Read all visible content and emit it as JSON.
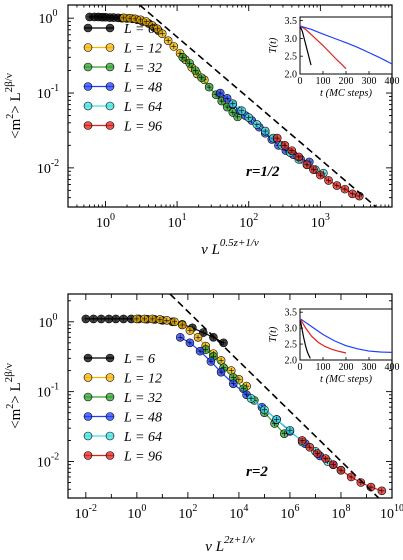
{
  "chart_data": [
    {
      "type": "scatter",
      "panel_label": "r=1/2",
      "x_scale": "log",
      "y_scale": "log",
      "xlim": [
        0.3,
        10000
      ],
      "ylim": [
        0.003,
        1.5
      ],
      "xtick_exponents": [
        0,
        1,
        2,
        3
      ],
      "ytick_exponents": [
        -2,
        -1,
        0
      ],
      "xlabel_main": "v L",
      "xlabel_sup": "0.5z+1/ν",
      "ylabel_main": "<m",
      "ylabel_mid": "> L",
      "ylabel_sup2": "2",
      "ylabel_sup": "2β/ν",
      "legend": {
        "position": "left",
        "entries": [
          "L = 6",
          "L = 12",
          "L = 32",
          "L = 48",
          "L = 64",
          "L = 96"
        ]
      },
      "fit_line": {
        "style": "dashed",
        "points": [
          [
            3.0,
            1.5
          ],
          [
            6000,
            0.003
          ]
        ]
      },
      "series": [
        {
          "name": "L = 6",
          "color": "#000000",
          "marker": "plus-circle",
          "points": [
            [
              0.6,
              1.04
            ],
            [
              0.7,
              1.04
            ],
            [
              0.8,
              1.04
            ],
            [
              0.9,
              1.03
            ],
            [
              1.0,
              1.03
            ],
            [
              1.15,
              1.02
            ],
            [
              1.3,
              1.02
            ],
            [
              1.5,
              1.01
            ],
            [
              1.7,
              1.0
            ],
            [
              2.0,
              0.99
            ],
            [
              2.4,
              0.98
            ],
            [
              2.8,
              0.95
            ],
            [
              3.3,
              0.9
            ],
            [
              4.0,
              0.85
            ],
            [
              4.8,
              0.75
            ],
            [
              5.5,
              0.68
            ]
          ]
        },
        {
          "name": "L = 12",
          "color": "#f5b400",
          "marker": "plus-circle",
          "points": [
            [
              1.8,
              1.01
            ],
            [
              2.2,
              1.0
            ],
            [
              2.6,
              0.98
            ],
            [
              3.1,
              0.95
            ],
            [
              3.7,
              0.9
            ],
            [
              4.5,
              0.8
            ],
            [
              5.3,
              0.72
            ],
            [
              6.2,
              0.62
            ],
            [
              7.5,
              0.5
            ],
            [
              9,
              0.42
            ],
            [
              11,
              0.34
            ],
            [
              13,
              0.28
            ],
            [
              16,
              0.22
            ],
            [
              19,
              0.18
            ],
            [
              24,
              0.15
            ]
          ]
        },
        {
          "name": "L = 32",
          "color": "#2ca02c",
          "marker": "plus-circle",
          "points": [
            [
              12,
              0.3
            ],
            [
              15,
              0.25
            ],
            [
              18,
              0.2
            ],
            [
              22,
              0.16
            ],
            [
              28,
              0.12
            ],
            [
              35,
              0.095
            ],
            [
              42,
              0.078
            ],
            [
              50,
              0.065
            ],
            [
              60,
              0.055
            ],
            [
              70,
              0.048
            ]
          ]
        },
        {
          "name": "L = 48",
          "color": "#1f3fff",
          "marker": "plus-circle",
          "points": [
            [
              40,
              0.1
            ],
            [
              50,
              0.085
            ],
            [
              60,
              0.07
            ],
            [
              75,
              0.058
            ],
            [
              90,
              0.05
            ],
            [
              110,
              0.043
            ],
            [
              140,
              0.035
            ],
            [
              170,
              0.029
            ],
            [
              210,
              0.024
            ],
            [
              260,
              0.02
            ],
            [
              330,
              0.017
            ],
            [
              420,
              0.015
            ],
            [
              530,
              0.013
            ],
            [
              700,
              0.012
            ]
          ]
        },
        {
          "name": "L = 64",
          "color": "#40e0e0",
          "marker": "plus-circle",
          "points": [
            [
              60,
              0.072
            ],
            [
              80,
              0.058
            ],
            [
              100,
              0.047
            ],
            [
              130,
              0.038
            ],
            [
              170,
              0.031
            ],
            [
              220,
              0.025
            ],
            [
              290,
              0.02
            ],
            [
              380,
              0.016
            ],
            [
              500,
              0.013
            ],
            [
              650,
              0.011
            ],
            [
              850,
              0.0095
            ],
            [
              1100,
              0.0085
            ]
          ]
        },
        {
          "name": "L = 96",
          "color": "#e0201b",
          "marker": "plus-circle",
          "points": [
            [
              250,
              0.025
            ],
            [
              320,
              0.02
            ],
            [
              400,
              0.017
            ],
            [
              500,
              0.014
            ],
            [
              650,
              0.011
            ],
            [
              800,
              0.0095
            ],
            [
              1000,
              0.008
            ],
            [
              1300,
              0.0068
            ],
            [
              1700,
              0.0058
            ],
            [
              2200,
              0.0052
            ],
            [
              2800,
              0.0045
            ],
            [
              3500,
              0.0042
            ]
          ]
        }
      ],
      "inset": {
        "xlim": [
          0,
          400
        ],
        "ylim": [
          2.0,
          3.6
        ],
        "xticks": [
          0,
          100,
          200,
          300,
          400
        ],
        "yticks": [
          2.0,
          2.5,
          3.0,
          3.5
        ],
        "xlabel": "t (MC steps)",
        "ylabel": "T(t)",
        "curves": [
          {
            "color": "#000000",
            "points": [
              [
                0,
                3.35
              ],
              [
                10,
                3.2
              ],
              [
                20,
                2.95
              ],
              [
                30,
                2.7
              ],
              [
                40,
                2.45
              ],
              [
                48,
                2.25
              ]
            ]
          },
          {
            "color": "#e0201b",
            "points": [
              [
                0,
                3.35
              ],
              [
                25,
                3.25
              ],
              [
                50,
                3.1
              ],
              [
                75,
                2.95
              ],
              [
                100,
                2.8
              ],
              [
                130,
                2.6
              ],
              [
                160,
                2.4
              ],
              [
                180,
                2.28
              ],
              [
                200,
                2.15
              ]
            ]
          },
          {
            "color": "#1f3fff",
            "points": [
              [
                0,
                3.35
              ],
              [
                50,
                3.25
              ],
              [
                100,
                3.12
              ],
              [
                150,
                3.0
              ],
              [
                200,
                2.88
              ],
              [
                250,
                2.75
              ],
              [
                300,
                2.6
              ],
              [
                340,
                2.48
              ],
              [
                380,
                2.35
              ],
              [
                400,
                2.28
              ]
            ]
          }
        ]
      }
    },
    {
      "type": "scatter",
      "panel_label": "r=2",
      "x_scale": "log",
      "y_scale": "log",
      "xlim": [
        0.002,
        10000000000
      ],
      "ylim": [
        0.003,
        2.5
      ],
      "xtick_exponents": [
        -2,
        0,
        2,
        4,
        6,
        8,
        10
      ],
      "ytick_exponents": [
        -2,
        -1,
        0
      ],
      "xlabel_main": "v L",
      "xlabel_sup": "2z+1/ν",
      "ylabel_main": "<m",
      "ylabel_mid": "> L",
      "ylabel_sup2": "2",
      "ylabel_sup": "2β/ν",
      "legend": {
        "position": "left",
        "entries": [
          "L = 6",
          "L = 12",
          "L = 32",
          "L = 48",
          "L = 64",
          "L = 96"
        ]
      },
      "fit_line": {
        "style": "dashed",
        "points": [
          [
            20,
            2.5
          ],
          [
            3000000000,
            0.003
          ]
        ]
      },
      "series": [
        {
          "name": "L = 6",
          "color": "#000000",
          "marker": "plus-circle",
          "points": [
            [
              0.01,
              1.1
            ],
            [
              0.02,
              1.1
            ],
            [
              0.04,
              1.1
            ],
            [
              0.08,
              1.1
            ],
            [
              0.15,
              1.1
            ],
            [
              0.3,
              1.1
            ],
            [
              0.6,
              1.1
            ],
            [
              1.2,
              1.1
            ],
            [
              2.5,
              1.09
            ],
            [
              5,
              1.08
            ],
            [
              10,
              1.05
            ],
            [
              25,
              1.0
            ],
            [
              60,
              0.92
            ],
            [
              150,
              0.82
            ],
            [
              400,
              0.7
            ],
            [
              1000,
              0.6
            ],
            [
              2500,
              0.5
            ]
          ]
        },
        {
          "name": "L = 12",
          "color": "#f5b400",
          "marker": "plus-circle",
          "points": [
            [
              1,
              1.1
            ],
            [
              2,
              1.1
            ],
            [
              4,
              1.1
            ],
            [
              8,
              1.08
            ],
            [
              15,
              1.05
            ],
            [
              30,
              1.0
            ],
            [
              60,
              0.9
            ],
            [
              120,
              0.75
            ],
            [
              250,
              0.6
            ],
            [
              500,
              0.45
            ],
            [
              1000,
              0.35
            ],
            [
              2000,
              0.28
            ],
            [
              5000,
              0.2
            ],
            [
              10000,
              0.15
            ],
            [
              20000,
              0.12
            ]
          ]
        },
        {
          "name": "L = 32",
          "color": "#2ca02c",
          "marker": "plus-circle",
          "points": [
            [
              500,
              0.4
            ],
            [
              1000,
              0.32
            ],
            [
              2500,
              0.22
            ],
            [
              6000,
              0.16
            ],
            [
              15000,
              0.11
            ],
            [
              40000,
              0.075
            ],
            [
              100000,
              0.05
            ],
            [
              250000,
              0.035
            ],
            [
              600000,
              0.025
            ]
          ]
        },
        {
          "name": "L = 48",
          "color": "#1f3fff",
          "marker": "plus-circle",
          "points": [
            [
              50,
              0.6
            ],
            [
              120,
              0.5
            ],
            [
              300,
              0.38
            ],
            [
              800,
              0.27
            ],
            [
              2000,
              0.19
            ],
            [
              6000,
              0.13
            ],
            [
              20000,
              0.09
            ],
            [
              80000,
              0.06
            ],
            [
              300000,
              0.04
            ],
            [
              1000000,
              0.027
            ],
            [
              4000000,
              0.018
            ],
            [
              15000000,
              0.012
            ],
            [
              50000000,
              0.009
            ]
          ]
        },
        {
          "name": "L = 64",
          "color": "#40e0e0",
          "marker": "plus-circle",
          "points": [
            [
              30000,
              0.08
            ],
            [
              100000,
              0.055
            ],
            [
              300000,
              0.04
            ],
            [
              1000000,
              0.028
            ],
            [
              3000000,
              0.019
            ],
            [
              10000000,
              0.014
            ],
            [
              30000000,
              0.01
            ],
            [
              100000000,
              0.0075
            ]
          ]
        },
        {
          "name": "L = 96",
          "color": "#e0201b",
          "marker": "plus-circle",
          "points": [
            [
              3000000,
              0.02
            ],
            [
              6000000,
              0.016
            ],
            [
              12000000,
              0.013
            ],
            [
              25000000,
              0.011
            ],
            [
              50000000,
              0.009
            ],
            [
              100000000,
              0.0075
            ],
            [
              250000000,
              0.006
            ],
            [
              600000000,
              0.005
            ],
            [
              1500000000,
              0.0043
            ],
            [
              4000000000,
              0.0038
            ]
          ]
        }
      ],
      "inset": {
        "xlim": [
          0,
          400
        ],
        "ylim": [
          2.0,
          3.6
        ],
        "xticks": [
          0,
          100,
          200,
          300,
          400
        ],
        "yticks": [
          2.0,
          2.5,
          3.0,
          3.5
        ],
        "xlabel": "t (MC steps)",
        "ylabel": "T(t)",
        "curves": [
          {
            "color": "#000000",
            "points": [
              [
                0,
                3.3
              ],
              [
                8,
                3.0
              ],
              [
                16,
                2.7
              ],
              [
                24,
                2.45
              ],
              [
                32,
                2.25
              ],
              [
                40,
                2.12
              ],
              [
                45,
                2.05
              ]
            ]
          },
          {
            "color": "#e0201b",
            "points": [
              [
                0,
                3.3
              ],
              [
                25,
                3.0
              ],
              [
                50,
                2.75
              ],
              [
                80,
                2.55
              ],
              [
                110,
                2.42
              ],
              [
                140,
                2.33
              ],
              [
                170,
                2.27
              ],
              [
                200,
                2.22
              ]
            ]
          },
          {
            "color": "#1f3fff",
            "points": [
              [
                0,
                3.3
              ],
              [
                50,
                3.05
              ],
              [
                100,
                2.8
              ],
              [
                150,
                2.6
              ],
              [
                200,
                2.45
              ],
              [
                250,
                2.35
              ],
              [
                300,
                2.28
              ],
              [
                350,
                2.25
              ],
              [
                400,
                2.24
              ]
            ]
          }
        ]
      }
    }
  ]
}
